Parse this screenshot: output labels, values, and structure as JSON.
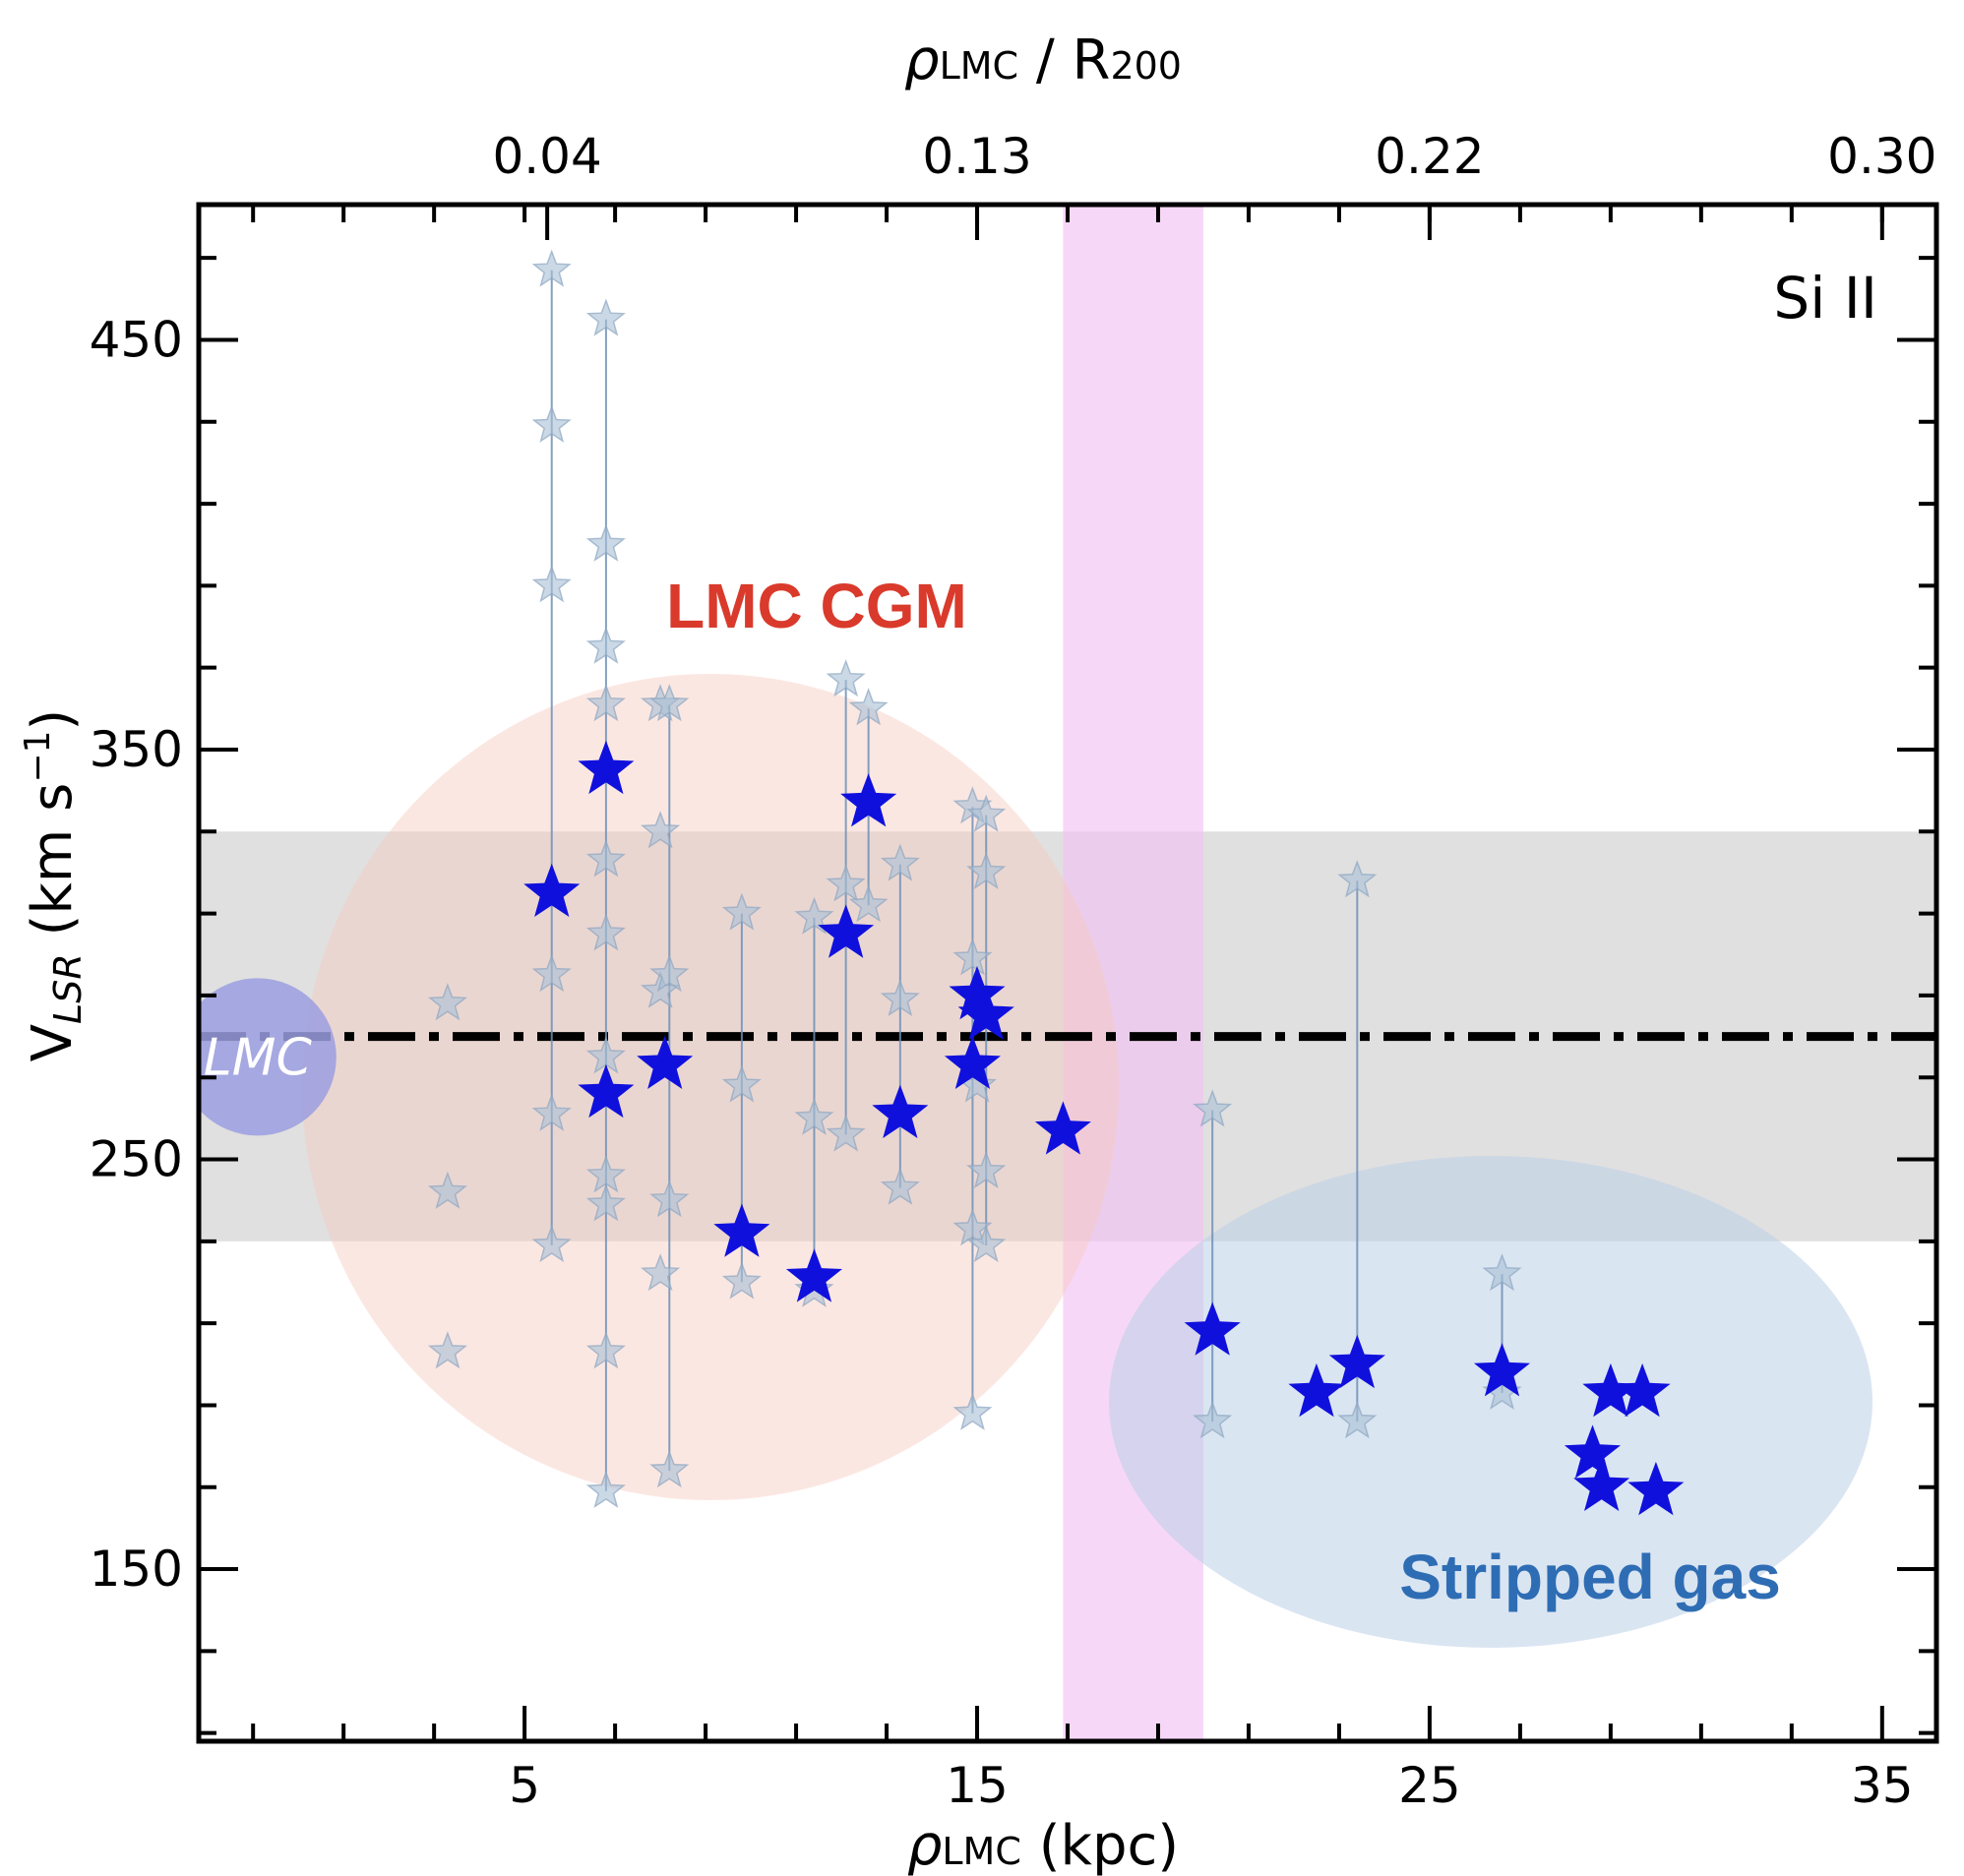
{
  "chart_data": {
    "type": "scatter",
    "xlabel_main": "ρ",
    "xlabel_sub": "LMC",
    "xlabel_unit": " (kpc)",
    "top_xlabel_main": "ρ",
    "top_xlabel_sub": "LMC",
    "top_xlabel_rest": " / R",
    "top_xlabel_rest_sub": "200",
    "ylabel_main": "V",
    "ylabel_sub": "LSR",
    "ylabel_unit": " (km s",
    "ylabel_sup": "−1",
    "ylabel_close": ")",
    "xlim": [
      -2.2,
      36.2
    ],
    "ylim": [
      108,
      483
    ],
    "x_ticks_major": [
      5,
      15,
      25,
      35
    ],
    "x_tick_labels": [
      "5",
      "15",
      "25",
      "35"
    ],
    "y_ticks_major": [
      150,
      250,
      350,
      450
    ],
    "y_tick_labels": [
      "150",
      "250",
      "350",
      "450"
    ],
    "top_ticks": [
      {
        "x": 5.5,
        "label": "0.04"
      },
      {
        "x": 15.0,
        "label": "0.13"
      },
      {
        "x": 25.0,
        "label": "0.22"
      },
      {
        "x": 35.0,
        "label": "0.30"
      }
    ],
    "ion_label": "Si II",
    "lmc_velocity": 280,
    "lmc_velocity_band": [
      230,
      330
    ],
    "r200_band_x": [
      16.9,
      20.0
    ],
    "lmc_marker": {
      "x": -0.9,
      "y": 275,
      "label": "LMC"
    },
    "annotations": {
      "cgm_label": "LMC CGM",
      "stripped_label": "Stripped gas",
      "cgm_color": "#d93a2b",
      "stripped_color": "#2e6db4"
    },
    "colors": {
      "primary_star": "#1010dd",
      "secondary_star": "#a9bfd6",
      "connector": "#6f8fb6",
      "gray_band": "#cccccc",
      "pink_band": "#f2c2f2",
      "cgm_ellipse": "#f6c9be",
      "stripped_ellipse": "#bcd0e8",
      "lmc_marker": "#9b9ee0"
    },
    "series": [
      {
        "kind": "primary",
        "points": [
          [
            5.6,
            315
          ],
          [
            6.8,
            345
          ],
          [
            6.8,
            266
          ],
          [
            8.1,
            273
          ],
          [
            9.8,
            232
          ],
          [
            11.4,
            221
          ],
          [
            12.1,
            305
          ],
          [
            12.6,
            337
          ],
          [
            13.3,
            261
          ],
          [
            14.9,
            273
          ],
          [
            15.0,
            290
          ],
          [
            15.2,
            285
          ],
          [
            16.9,
            257
          ],
          [
            20.2,
            208
          ],
          [
            22.5,
            193
          ],
          [
            23.4,
            200
          ],
          [
            26.6,
            198
          ],
          [
            28.6,
            178
          ],
          [
            28.8,
            170
          ],
          [
            29.0,
            193
          ],
          [
            29.7,
            193
          ],
          [
            30.0,
            169
          ]
        ]
      },
      {
        "kind": "secondary",
        "points": [
          [
            3.3,
            288
          ],
          [
            3.3,
            242
          ],
          [
            3.3,
            203
          ],
          [
            5.6,
            467
          ],
          [
            5.6,
            429
          ],
          [
            5.6,
            390
          ],
          [
            5.6,
            295
          ],
          [
            5.6,
            261
          ],
          [
            5.6,
            229
          ],
          [
            6.8,
            455
          ],
          [
            6.8,
            400
          ],
          [
            6.8,
            375
          ],
          [
            6.8,
            361
          ],
          [
            6.8,
            323
          ],
          [
            6.8,
            305
          ],
          [
            6.8,
            275
          ],
          [
            6.8,
            246
          ],
          [
            6.8,
            239
          ],
          [
            6.8,
            203
          ],
          [
            6.8,
            169
          ],
          [
            8.0,
            361
          ],
          [
            8.0,
            330
          ],
          [
            8.0,
            291
          ],
          [
            8.0,
            222
          ],
          [
            8.2,
            361
          ],
          [
            8.2,
            295
          ],
          [
            8.2,
            240
          ],
          [
            8.2,
            174
          ],
          [
            9.8,
            310
          ],
          [
            9.8,
            268
          ],
          [
            9.8,
            220
          ],
          [
            11.4,
            309
          ],
          [
            11.4,
            260
          ],
          [
            11.4,
            218
          ],
          [
            12.1,
            367
          ],
          [
            12.1,
            317
          ],
          [
            12.1,
            256
          ],
          [
            12.6,
            360
          ],
          [
            12.6,
            312
          ],
          [
            13.3,
            322
          ],
          [
            13.3,
            289
          ],
          [
            13.3,
            243
          ],
          [
            14.9,
            336
          ],
          [
            14.9,
            299
          ],
          [
            14.9,
            233
          ],
          [
            14.9,
            188
          ],
          [
            15.0,
            268
          ],
          [
            15.2,
            334
          ],
          [
            15.2,
            320
          ],
          [
            15.2,
            247
          ],
          [
            15.2,
            229
          ],
          [
            20.2,
            262
          ],
          [
            20.2,
            186
          ],
          [
            23.4,
            318
          ],
          [
            23.4,
            186
          ],
          [
            26.6,
            222
          ],
          [
            26.6,
            193
          ]
        ]
      }
    ],
    "connectors": [
      {
        "x": 5.6,
        "y": [
          229,
          467
        ]
      },
      {
        "x": 6.8,
        "y": [
          169,
          455
        ]
      },
      {
        "x": 8.2,
        "y": [
          174,
          361
        ]
      },
      {
        "x": 9.8,
        "y": [
          220,
          310
        ]
      },
      {
        "x": 11.4,
        "y": [
          218,
          309
        ]
      },
      {
        "x": 12.1,
        "y": [
          256,
          367
        ]
      },
      {
        "x": 12.6,
        "y": [
          312,
          360
        ]
      },
      {
        "x": 13.3,
        "y": [
          243,
          322
        ]
      },
      {
        "x": 14.9,
        "y": [
          188,
          336
        ]
      },
      {
        "x": 15.2,
        "y": [
          229,
          334
        ]
      },
      {
        "x": 20.2,
        "y": [
          186,
          262
        ]
      },
      {
        "x": 23.4,
        "y": [
          186,
          318
        ]
      },
      {
        "x": 26.6,
        "y": [
          193,
          222
        ]
      }
    ]
  }
}
